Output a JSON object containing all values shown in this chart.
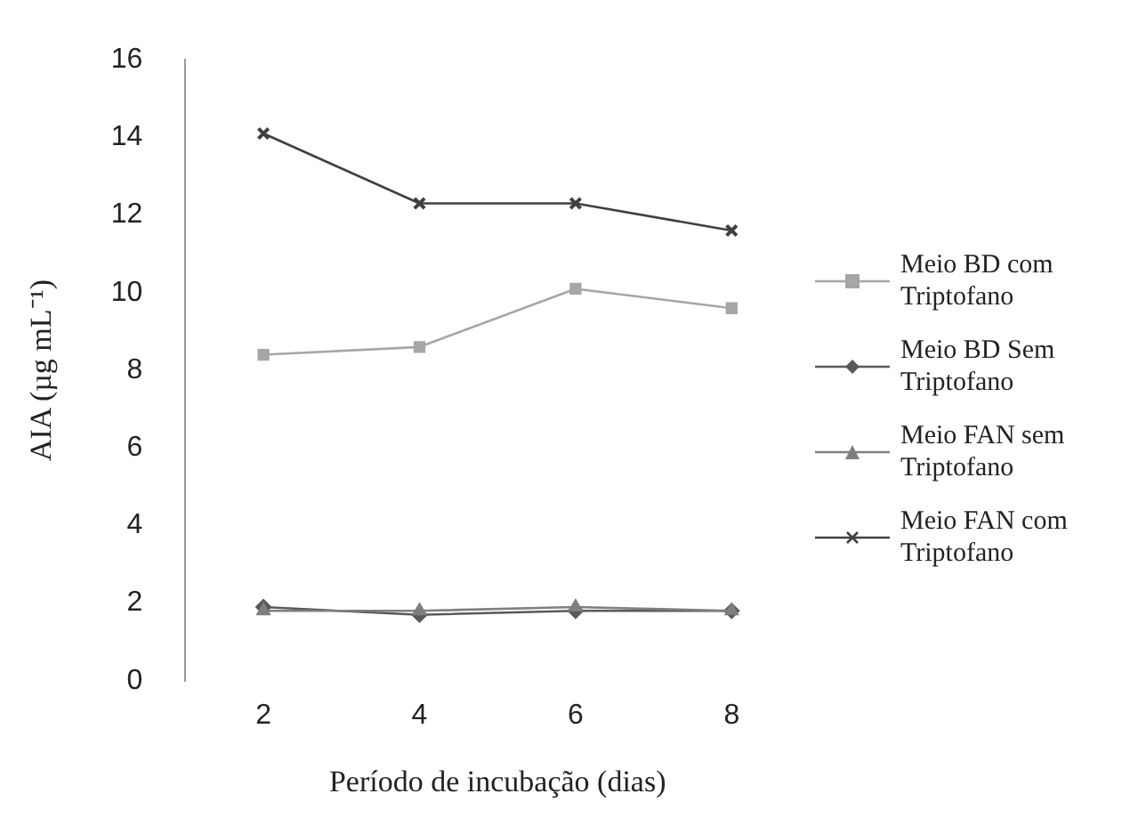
{
  "chart_data": {
    "type": "line",
    "xlabel": "Período de incubação (dias)",
    "ylabel": "AIA (µg mL⁻¹)",
    "categories": [
      "2",
      "4",
      "6",
      "8"
    ],
    "series": [
      {
        "name": "Meio BD com Triptofano",
        "color": "#a6a6a6",
        "marker": "square",
        "values": [
          8.4,
          8.6,
          10.1,
          9.6
        ]
      },
      {
        "name": "Meio BD Sem Triptofano",
        "color": "#595959",
        "marker": "diamond",
        "values": [
          1.9,
          1.7,
          1.8,
          1.8
        ]
      },
      {
        "name": "Meio FAN sem Triptofano",
        "color": "#7f7f7f",
        "marker": "triangle",
        "values": [
          1.8,
          1.8,
          1.9,
          1.8
        ]
      },
      {
        "name": "Meio FAN com Triptofano",
        "color": "#404040",
        "marker": "cross",
        "values": [
          14.1,
          12.3,
          12.3,
          11.6
        ]
      }
    ],
    "ylim": [
      0,
      16
    ],
    "yticks": [
      0,
      2,
      4,
      6,
      8,
      10,
      12,
      14,
      16
    ],
    "grid": false,
    "legend": "right",
    "line_style": "solid"
  }
}
